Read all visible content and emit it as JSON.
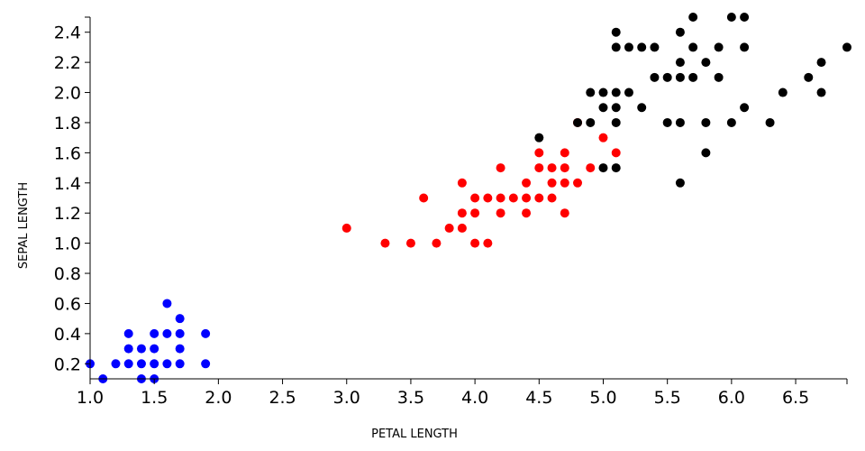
{
  "chart_data": {
    "type": "scatter",
    "xlabel": "PETAL LENGTH",
    "ylabel": "SEPAL LENGTH",
    "xlim": [
      1.0,
      6.9
    ],
    "ylim": [
      0.1,
      2.5
    ],
    "x_ticks": [
      "1.0",
      "1.5",
      "2.0",
      "2.5",
      "3.0",
      "3.5",
      "4.0",
      "4.5",
      "5.0",
      "5.5",
      "6.0",
      "6.5"
    ],
    "y_ticks": [
      "0.2",
      "0.4",
      "0.6",
      "0.8",
      "1.0",
      "1.2",
      "1.4",
      "1.6",
      "1.8",
      "2.0",
      "2.2",
      "2.4"
    ],
    "grid": false,
    "series": [
      {
        "color": "#0000ff",
        "points": [
          [
            1.0,
            0.2
          ],
          [
            1.1,
            0.1
          ],
          [
            1.2,
            0.2
          ],
          [
            1.3,
            0.2
          ],
          [
            1.3,
            0.3
          ],
          [
            1.3,
            0.4
          ],
          [
            1.4,
            0.1
          ],
          [
            1.4,
            0.2
          ],
          [
            1.4,
            0.3
          ],
          [
            1.5,
            0.1
          ],
          [
            1.5,
            0.2
          ],
          [
            1.5,
            0.3
          ],
          [
            1.5,
            0.4
          ],
          [
            1.6,
            0.2
          ],
          [
            1.6,
            0.4
          ],
          [
            1.6,
            0.6
          ],
          [
            1.7,
            0.2
          ],
          [
            1.7,
            0.3
          ],
          [
            1.7,
            0.4
          ],
          [
            1.7,
            0.5
          ],
          [
            1.9,
            0.2
          ],
          [
            1.9,
            0.4
          ]
        ]
      },
      {
        "color": "#ff0000",
        "points": [
          [
            3.0,
            1.1
          ],
          [
            3.3,
            1.0
          ],
          [
            3.5,
            1.0
          ],
          [
            3.6,
            1.3
          ],
          [
            3.7,
            1.0
          ],
          [
            3.8,
            1.1
          ],
          [
            3.9,
            1.1
          ],
          [
            3.9,
            1.2
          ],
          [
            3.9,
            1.4
          ],
          [
            4.0,
            1.0
          ],
          [
            4.0,
            1.2
          ],
          [
            4.0,
            1.3
          ],
          [
            4.1,
            1.0
          ],
          [
            4.1,
            1.3
          ],
          [
            4.2,
            1.2
          ],
          [
            4.2,
            1.3
          ],
          [
            4.2,
            1.5
          ],
          [
            4.3,
            1.3
          ],
          [
            4.4,
            1.2
          ],
          [
            4.4,
            1.3
          ],
          [
            4.4,
            1.4
          ],
          [
            4.5,
            1.3
          ],
          [
            4.5,
            1.5
          ],
          [
            4.5,
            1.6
          ],
          [
            4.6,
            1.3
          ],
          [
            4.6,
            1.4
          ],
          [
            4.6,
            1.5
          ],
          [
            4.7,
            1.2
          ],
          [
            4.7,
            1.4
          ],
          [
            4.7,
            1.5
          ],
          [
            4.7,
            1.6
          ],
          [
            4.8,
            1.4
          ],
          [
            4.8,
            1.8
          ],
          [
            4.9,
            1.5
          ],
          [
            5.0,
            1.7
          ],
          [
            5.1,
            1.6
          ]
        ]
      },
      {
        "color": "#000000",
        "points": [
          [
            4.5,
            1.7
          ],
          [
            4.8,
            1.8
          ],
          [
            4.9,
            1.8
          ],
          [
            4.9,
            2.0
          ],
          [
            5.0,
            1.5
          ],
          [
            5.0,
            1.9
          ],
          [
            5.0,
            2.0
          ],
          [
            5.1,
            1.5
          ],
          [
            5.1,
            1.8
          ],
          [
            5.1,
            1.9
          ],
          [
            5.1,
            2.0
          ],
          [
            5.1,
            2.3
          ],
          [
            5.1,
            2.4
          ],
          [
            5.2,
            2.0
          ],
          [
            5.2,
            2.3
          ],
          [
            5.3,
            1.9
          ],
          [
            5.3,
            2.3
          ],
          [
            5.4,
            2.1
          ],
          [
            5.4,
            2.3
          ],
          [
            5.5,
            1.8
          ],
          [
            5.5,
            2.1
          ],
          [
            5.6,
            1.4
          ],
          [
            5.6,
            1.8
          ],
          [
            5.6,
            2.1
          ],
          [
            5.6,
            2.2
          ],
          [
            5.6,
            2.4
          ],
          [
            5.7,
            2.1
          ],
          [
            5.7,
            2.3
          ],
          [
            5.7,
            2.5
          ],
          [
            5.8,
            1.6
          ],
          [
            5.8,
            1.8
          ],
          [
            5.8,
            2.2
          ],
          [
            5.9,
            2.1
          ],
          [
            5.9,
            2.3
          ],
          [
            6.0,
            1.8
          ],
          [
            6.0,
            2.5
          ],
          [
            6.1,
            1.9
          ],
          [
            6.1,
            2.3
          ],
          [
            6.1,
            2.5
          ],
          [
            6.3,
            1.8
          ],
          [
            6.4,
            2.0
          ],
          [
            6.6,
            2.1
          ],
          [
            6.7,
            2.0
          ],
          [
            6.7,
            2.2
          ],
          [
            6.9,
            2.3
          ]
        ]
      }
    ]
  }
}
